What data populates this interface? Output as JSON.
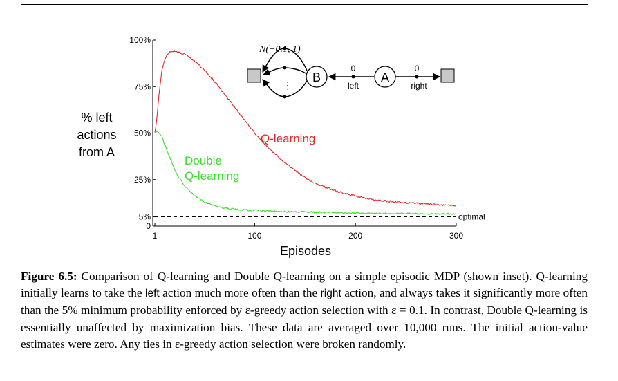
{
  "chart_data": {
    "type": "line",
    "ylabel_lines": [
      "% left",
      "actions",
      "from A"
    ],
    "xlabel": "Episodes",
    "xlim": [
      1,
      300
    ],
    "ylim": [
      0,
      100
    ],
    "x_ticks": [
      1,
      100,
      200,
      300
    ],
    "y_ticks": [
      {
        "value": 0,
        "label": "0"
      },
      {
        "value": 5,
        "label": "5%"
      },
      {
        "value": 25,
        "label": "25%"
      },
      {
        "value": 50,
        "label": "50%"
      },
      {
        "value": 75,
        "label": "75%"
      },
      {
        "value": 100,
        "label": "100%"
      }
    ],
    "grid": false,
    "series": [
      {
        "name": "Q-learning",
        "label_lines": [
          "Q-learning"
        ],
        "color": "#e0282a",
        "x": [
          1,
          3,
          5,
          8,
          12,
          16,
          20,
          25,
          30,
          40,
          50,
          60,
          70,
          80,
          90,
          100,
          110,
          120,
          130,
          140,
          150,
          160,
          170,
          180,
          190,
          200,
          210,
          220,
          230,
          240,
          250,
          260,
          270,
          280,
          290,
          300
        ],
        "y": [
          50,
          58,
          70,
          84,
          91,
          93.5,
          94,
          93.5,
          92.5,
          89,
          84,
          78,
          71,
          64,
          57,
          50,
          44,
          39,
          34,
          30,
          26,
          23,
          21,
          19,
          17.5,
          16.2,
          15,
          14,
          13.5,
          13,
          12.6,
          12.3,
          12,
          11.6,
          11.2,
          10.8
        ]
      },
      {
        "name": "Double Q-learning",
        "label_lines": [
          "Double",
          "Q-learning"
        ],
        "color": "#3ddc2c",
        "x": [
          1,
          3,
          5,
          8,
          10,
          15,
          20,
          25,
          30,
          40,
          50,
          60,
          70,
          80,
          90,
          100,
          120,
          140,
          160,
          180,
          200,
          220,
          240,
          260,
          280,
          300
        ],
        "y": [
          50,
          51,
          50,
          48.5,
          45,
          38,
          31,
          26,
          22,
          16.5,
          13,
          11,
          9.8,
          9,
          8.6,
          8.4,
          8,
          7.7,
          7.4,
          7.2,
          7,
          6.9,
          6.8,
          6.7,
          6.6,
          6.5
        ]
      }
    ],
    "reference_line": {
      "y": 5,
      "label": "optimal",
      "style": "dashed"
    }
  },
  "inset": {
    "states": [
      "B",
      "A"
    ],
    "reward_dist": "N(−0.1, 1)",
    "reward_left": "0",
    "reward_right": "0",
    "left_label": "left",
    "right_label": "right",
    "dots": "⋮"
  },
  "caption": {
    "label": "Figure 6.5:",
    "t1": " Comparison of Q-learning and Double Q-learning on a simple episodic MDP (shown inset). Q-learning initially learns to take the ",
    "left_word": "left",
    "t2": " action much more often than the ",
    "right_word": "right",
    "t3": " action, and always takes it significantly more often than the 5% minimum probability enforced by ε-greedy action selection with ε = 0.1. In contrast, Double Q-learning is essentially unaffected by maximization bias. These data are averaged over 10,000 runs. The initial action-value estimates were zero. Any ties in ε-greedy action selection were broken randomly."
  }
}
